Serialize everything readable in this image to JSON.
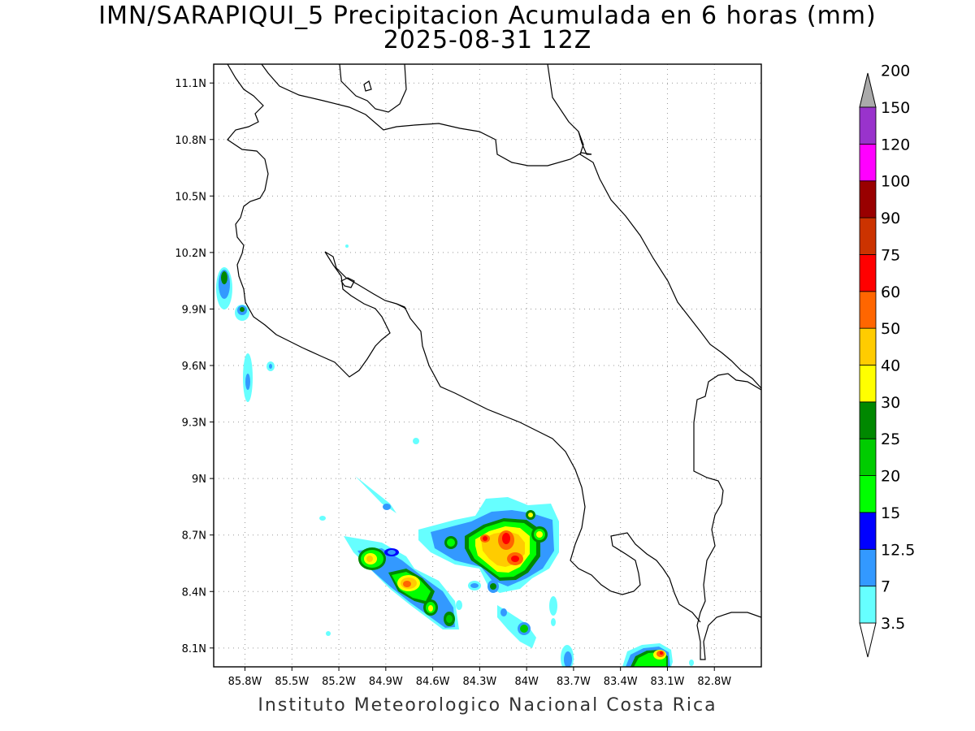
{
  "title": "IMN/SARAPIQUI_5 Precipitacion Acumulada en 6 horas (mm)",
  "subtitle": "2025-08-31 12Z",
  "footer": "Instituto Meteorologico Nacional Costa Rica",
  "map": {
    "lon_range": [
      -86.0,
      -82.5
    ],
    "lat_range": [
      8.0,
      11.2
    ],
    "lon_ticks": [
      {
        "value": -85.8,
        "label": "85.8W"
      },
      {
        "value": -85.5,
        "label": "85.5W"
      },
      {
        "value": -85.2,
        "label": "85.2W"
      },
      {
        "value": -84.9,
        "label": "84.9W"
      },
      {
        "value": -84.6,
        "label": "84.6W"
      },
      {
        "value": -84.3,
        "label": "84.3W"
      },
      {
        "value": -84.0,
        "label": "84W"
      },
      {
        "value": -83.7,
        "label": "83.7W"
      },
      {
        "value": -83.4,
        "label": "83.4W"
      },
      {
        "value": -83.1,
        "label": "83.1W"
      },
      {
        "value": -82.8,
        "label": "82.8W"
      }
    ],
    "lat_ticks": [
      {
        "value": 11.1,
        "label": "11.1N"
      },
      {
        "value": 10.8,
        "label": "10.8N"
      },
      {
        "value": 10.5,
        "label": "10.5N"
      },
      {
        "value": 10.2,
        "label": "10.2N"
      },
      {
        "value": 9.9,
        "label": "9.9N"
      },
      {
        "value": 9.6,
        "label": "9.6N"
      },
      {
        "value": 9.3,
        "label": "9.3N"
      },
      {
        "value": 9.0,
        "label": "9N"
      },
      {
        "value": 8.7,
        "label": "8.7N"
      },
      {
        "value": 8.4,
        "label": "8.4N"
      },
      {
        "value": 8.1,
        "label": "8.1N"
      }
    ],
    "grid": true
  },
  "colorbar": {
    "labels": [
      "3.5",
      "7",
      "12.5",
      "15",
      "20",
      "25",
      "30",
      "40",
      "50",
      "60",
      "75",
      "90",
      "100",
      "120",
      "150",
      "200"
    ],
    "colors": [
      "#66ffff",
      "#3399ff",
      "#0000ff",
      "#00ff00",
      "#00cc00",
      "#008800",
      "#ffff00",
      "#ffcc00",
      "#ff6600",
      "#ff0000",
      "#cc3300",
      "#990000",
      "#ff00ff",
      "#9933cc",
      "#f5f5f5",
      "#aaaaaa"
    ]
  }
}
